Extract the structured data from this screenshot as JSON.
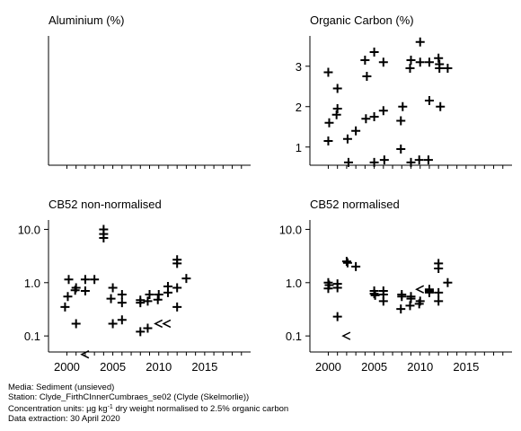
{
  "chart_data": [
    {
      "type": "scatter",
      "title": "Aluminium (%)",
      "xlim": [
        1998,
        2020
      ],
      "xticks": [],
      "yscale": "linear",
      "yticks": [],
      "points": []
    },
    {
      "type": "scatter",
      "title": "Organic Carbon (%)",
      "xlim": [
        1998,
        2020
      ],
      "xticks": [],
      "yscale": "linear",
      "ylim": [
        0.55,
        3.75
      ],
      "yticks": [
        1,
        2,
        3
      ],
      "points": [
        {
          "x": 2000.0,
          "y": 2.85,
          "m": "+"
        },
        {
          "x": 2000.1,
          "y": 1.6,
          "m": "+"
        },
        {
          "x": 2000.0,
          "y": 1.15,
          "m": "+"
        },
        {
          "x": 2001.0,
          "y": 2.45,
          "m": "+"
        },
        {
          "x": 2001.0,
          "y": 1.95,
          "m": "+"
        },
        {
          "x": 2000.9,
          "y": 1.8,
          "m": "+"
        },
        {
          "x": 2002.1,
          "y": 1.2,
          "m": "+"
        },
        {
          "x": 2002.2,
          "y": 0.62,
          "m": "+"
        },
        {
          "x": 2003.0,
          "y": 1.4,
          "m": "+"
        },
        {
          "x": 2004.0,
          "y": 3.15,
          "m": "+"
        },
        {
          "x": 2004.2,
          "y": 2.75,
          "m": "+"
        },
        {
          "x": 2004.1,
          "y": 1.7,
          "m": "+"
        },
        {
          "x": 2005.0,
          "y": 3.35,
          "m": "+"
        },
        {
          "x": 2005.0,
          "y": 1.75,
          "m": "+"
        },
        {
          "x": 2005.0,
          "y": 0.62,
          "m": "+"
        },
        {
          "x": 2006.0,
          "y": 3.1,
          "m": "+"
        },
        {
          "x": 2006.0,
          "y": 1.9,
          "m": "+"
        },
        {
          "x": 2006.1,
          "y": 0.68,
          "m": "+"
        },
        {
          "x": 2008.1,
          "y": 2.0,
          "m": "+"
        },
        {
          "x": 2007.9,
          "y": 1.65,
          "m": "+"
        },
        {
          "x": 2007.9,
          "y": 0.95,
          "m": "+"
        },
        {
          "x": 2009.0,
          "y": 3.15,
          "m": "+"
        },
        {
          "x": 2008.9,
          "y": 2.95,
          "m": "+"
        },
        {
          "x": 2009.0,
          "y": 0.62,
          "m": "+"
        },
        {
          "x": 2010.0,
          "y": 3.6,
          "m": "+"
        },
        {
          "x": 2010.0,
          "y": 3.1,
          "m": "+"
        },
        {
          "x": 2009.9,
          "y": 0.68,
          "m": "+"
        },
        {
          "x": 2011.0,
          "y": 3.1,
          "m": "+"
        },
        {
          "x": 2011.0,
          "y": 2.15,
          "m": "+"
        },
        {
          "x": 2010.9,
          "y": 0.68,
          "m": "+"
        },
        {
          "x": 2012.0,
          "y": 3.2,
          "m": "+"
        },
        {
          "x": 2012.1,
          "y": 3.05,
          "m": "+"
        },
        {
          "x": 2012.1,
          "y": 2.95,
          "m": "+"
        },
        {
          "x": 2012.2,
          "y": 2.0,
          "m": "+"
        },
        {
          "x": 2013.0,
          "y": 2.95,
          "m": "+"
        }
      ]
    },
    {
      "type": "scatter",
      "title": "CB52 non-normalised",
      "xlim": [
        1998,
        2020
      ],
      "xticks": [
        2000,
        2005,
        2010,
        2015
      ],
      "yscale": "log",
      "ylim": [
        0.05,
        15
      ],
      "yticks": [
        0.1,
        1.0,
        10.0
      ],
      "yticklabels": [
        "0.1",
        "1.0",
        "10.0"
      ],
      "points": [
        {
          "x": 2000.2,
          "y": 1.15,
          "m": "+"
        },
        {
          "x": 2000.1,
          "y": 0.55,
          "m": "+"
        },
        {
          "x": 1999.8,
          "y": 0.35,
          "m": "+"
        },
        {
          "x": 2001.0,
          "y": 0.8,
          "m": "+"
        },
        {
          "x": 2000.9,
          "y": 0.72,
          "m": "+"
        },
        {
          "x": 2001.0,
          "y": 0.17,
          "m": "+"
        },
        {
          "x": 2002.0,
          "y": 1.15,
          "m": "+"
        },
        {
          "x": 2002.0,
          "y": 0.7,
          "m": "+"
        },
        {
          "x": 2002.0,
          "y": 0.045,
          "m": "<"
        },
        {
          "x": 2003.0,
          "y": 1.15,
          "m": "+"
        },
        {
          "x": 2004.0,
          "y": 10.0,
          "m": "+"
        },
        {
          "x": 2004.0,
          "y": 8.2,
          "m": "+"
        },
        {
          "x": 2004.0,
          "y": 6.9,
          "m": "+"
        },
        {
          "x": 2005.0,
          "y": 0.8,
          "m": "+"
        },
        {
          "x": 2004.8,
          "y": 0.5,
          "m": "+"
        },
        {
          "x": 2005.0,
          "y": 0.17,
          "m": "+"
        },
        {
          "x": 2006.0,
          "y": 0.6,
          "m": "+"
        },
        {
          "x": 2006.0,
          "y": 0.42,
          "m": "+"
        },
        {
          "x": 2006.0,
          "y": 0.2,
          "m": "+"
        },
        {
          "x": 2008.0,
          "y": 0.47,
          "m": "+"
        },
        {
          "x": 2008.0,
          "y": 0.42,
          "m": "+"
        },
        {
          "x": 2008.0,
          "y": 0.12,
          "m": "+"
        },
        {
          "x": 2009.0,
          "y": 0.6,
          "m": "+"
        },
        {
          "x": 2008.8,
          "y": 0.45,
          "m": "+"
        },
        {
          "x": 2008.8,
          "y": 0.14,
          "m": "+"
        },
        {
          "x": 2010.0,
          "y": 0.6,
          "m": "+"
        },
        {
          "x": 2009.9,
          "y": 0.48,
          "m": "+"
        },
        {
          "x": 2010.0,
          "y": 0.17,
          "m": "<"
        },
        {
          "x": 2011.0,
          "y": 0.85,
          "m": "+"
        },
        {
          "x": 2011.0,
          "y": 0.65,
          "m": "+"
        },
        {
          "x": 2010.9,
          "y": 0.17,
          "m": "<"
        },
        {
          "x": 2012.0,
          "y": 2.7,
          "m": "+"
        },
        {
          "x": 2012.0,
          "y": 2.3,
          "m": "+"
        },
        {
          "x": 2012.0,
          "y": 0.8,
          "m": "+"
        },
        {
          "x": 2012.0,
          "y": 0.35,
          "m": "+"
        },
        {
          "x": 2013.0,
          "y": 1.2,
          "m": "+"
        }
      ]
    },
    {
      "type": "scatter",
      "title": "CB52 normalised",
      "xlim": [
        1998,
        2020
      ],
      "xticks": [
        2000,
        2005,
        2010,
        2015
      ],
      "yscale": "log",
      "ylim": [
        0.05,
        15
      ],
      "yticks": [
        0.1,
        1.0,
        10.0
      ],
      "yticklabels": [
        "0.1",
        "1.0",
        "10.0"
      ],
      "points": [
        {
          "x": 2000.0,
          "y": 1.0,
          "m": "+"
        },
        {
          "x": 2000.1,
          "y": 0.9,
          "m": "+"
        },
        {
          "x": 2000.0,
          "y": 0.78,
          "m": "+"
        },
        {
          "x": 2001.0,
          "y": 0.95,
          "m": "+"
        },
        {
          "x": 2001.0,
          "y": 0.8,
          "m": "+"
        },
        {
          "x": 2001.0,
          "y": 0.23,
          "m": "+"
        },
        {
          "x": 2002.0,
          "y": 2.5,
          "m": "+"
        },
        {
          "x": 2002.1,
          "y": 2.35,
          "m": "+"
        },
        {
          "x": 2002.0,
          "y": 0.1,
          "m": "<"
        },
        {
          "x": 2003.0,
          "y": 2.0,
          "m": "+"
        },
        {
          "x": 2005.0,
          "y": 0.7,
          "m": "+"
        },
        {
          "x": 2005.0,
          "y": 0.62,
          "m": "+"
        },
        {
          "x": 2005.1,
          "y": 0.58,
          "m": "+"
        },
        {
          "x": 2006.0,
          "y": 0.7,
          "m": "+"
        },
        {
          "x": 2006.0,
          "y": 0.6,
          "m": "+"
        },
        {
          "x": 2006.0,
          "y": 0.45,
          "m": "+"
        },
        {
          "x": 2008.0,
          "y": 0.6,
          "m": "+"
        },
        {
          "x": 2008.0,
          "y": 0.55,
          "m": "+"
        },
        {
          "x": 2007.9,
          "y": 0.32,
          "m": "+"
        },
        {
          "x": 2009.0,
          "y": 0.55,
          "m": "+"
        },
        {
          "x": 2009.0,
          "y": 0.5,
          "m": "+"
        },
        {
          "x": 2008.9,
          "y": 0.37,
          "m": "+"
        },
        {
          "x": 2010.0,
          "y": 0.75,
          "m": "<"
        },
        {
          "x": 2010.0,
          "y": 0.45,
          "m": "+"
        },
        {
          "x": 2009.9,
          "y": 0.4,
          "m": "+"
        },
        {
          "x": 2011.0,
          "y": 0.75,
          "m": "+"
        },
        {
          "x": 2011.0,
          "y": 0.7,
          "m": "+"
        },
        {
          "x": 2011.0,
          "y": 0.65,
          "m": "+"
        },
        {
          "x": 2012.0,
          "y": 2.3,
          "m": "+"
        },
        {
          "x": 2012.0,
          "y": 1.85,
          "m": "+"
        },
        {
          "x": 2012.0,
          "y": 0.65,
          "m": "+"
        },
        {
          "x": 2012.0,
          "y": 0.45,
          "m": "+"
        },
        {
          "x": 2013.0,
          "y": 1.0,
          "m": "+"
        }
      ]
    }
  ],
  "footer": {
    "media": "Media: Sediment (unsieved)",
    "station": "Station: Clyde_FirthCInnerCumbraes_se02 (Clyde (Skelmorlie))",
    "units_prefix": "Concentration units:  µg kg",
    "units_exp": "-1",
    "units_suffix": " dry weight normalised to 2.5% organic carbon",
    "extraction": "Data extraction: 30 April 2020"
  }
}
